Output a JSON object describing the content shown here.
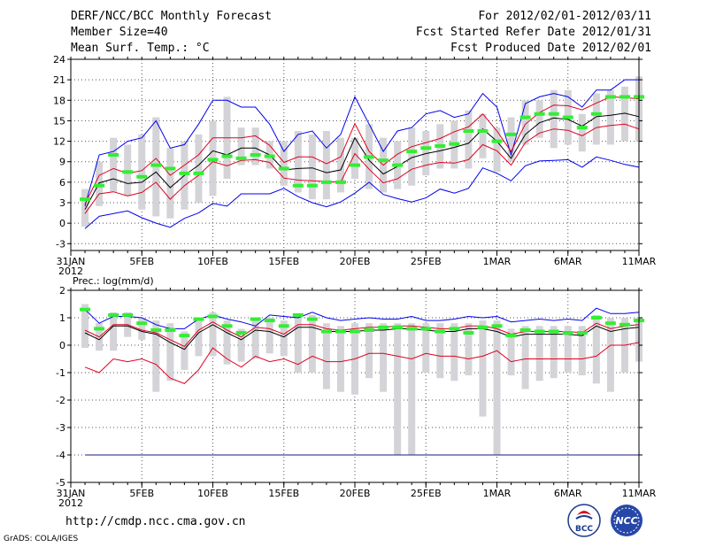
{
  "header": {
    "title": "DERF/NCC/BCC Monthly Forecast",
    "member_size": "Member Size=40",
    "variable": "Mean Surf. Temp.: °C",
    "period": "For 2012/02/01-2012/03/11",
    "started": "Fcst Started Refer Date 2012/01/31",
    "produced": "Fcst Produced Date 2012/02/01"
  },
  "footer": {
    "url": "http://cmdp.ncc.cma.gov.cn",
    "credit": "GrADS: COLA/IGES"
  },
  "logos": {
    "left": "BCC",
    "right": "NCC"
  },
  "x_ticks": [
    {
      "day": 0,
      "label": "31JAN"
    },
    {
      "day": 5,
      "label": "5FEB"
    },
    {
      "day": 10,
      "label": "10FEB"
    },
    {
      "day": 15,
      "label": "15FEB"
    },
    {
      "day": 20,
      "label": "20FEB"
    },
    {
      "day": 25,
      "label": "25FEB"
    },
    {
      "day": 30,
      "label": "1MAR"
    },
    {
      "day": 35,
      "label": "6MAR"
    },
    {
      "day": 40,
      "label": "11MAR"
    }
  ],
  "x_year": "2012",
  "colors": {
    "max": "#0000ee",
    "min": "#0000ee",
    "pct": "#e00020",
    "mean": "#000000",
    "green": "#33ee33",
    "bar": "#d4d4d8",
    "grid": "#555555"
  },
  "chart_data": [
    {
      "type": "line",
      "title": "Mean Surf. Temp.: °C",
      "xlabel": "",
      "ylabel": "",
      "ylim": [
        -4,
        24
      ],
      "yticks": [
        -3,
        0,
        3,
        6,
        9,
        12,
        15,
        18,
        21,
        24
      ],
      "days": [
        1,
        2,
        3,
        4,
        5,
        6,
        7,
        8,
        9,
        10,
        11,
        12,
        13,
        14,
        15,
        16,
        17,
        18,
        19,
        20,
        21,
        22,
        23,
        24,
        25,
        26,
        27,
        28,
        29,
        30,
        31,
        32,
        33,
        34,
        35,
        36,
        37,
        38,
        39,
        40
      ],
      "series": [
        {
          "name": "max",
          "values": [
            -0.8,
            1.0,
            1.4,
            1.8,
            0.8,
            0.0,
            -0.6,
            0.7,
            1.5,
            2.9,
            2.5,
            4.3,
            4.3,
            4.3,
            5.1,
            3.9,
            3.0,
            2.4,
            3.1,
            4.4,
            6.0,
            4.2,
            3.6,
            3.1,
            3.7,
            5.0,
            4.4,
            5.1,
            8.1,
            7.3,
            6.2,
            8.4,
            9.1,
            9.2,
            9.3,
            8.2,
            9.7,
            9.2,
            8.6,
            8.2
          ]
        },
        {
          "name": "min",
          "values": [
            2.5,
            10.0,
            10.5,
            12.0,
            12.5,
            15.0,
            11.0,
            11.5,
            14.5,
            18.0,
            18.0,
            17.0,
            17.0,
            14.5,
            10.5,
            13.0,
            13.5,
            11.0,
            13.0,
            18.5,
            14.5,
            10.5,
            13.5,
            14.0,
            16.0,
            16.5,
            15.5,
            16.0,
            19.0,
            17.0,
            10.0,
            17.5,
            18.5,
            19.0,
            18.5,
            17.0,
            19.5,
            19.5,
            21.0,
            21.0
          ]
        },
        {
          "name": "upper",
          "values": [
            2.8,
            7.0,
            8.0,
            7.3,
            7.7,
            9.5,
            7.0,
            8.5,
            10.0,
            12.5,
            12.5,
            12.5,
            12.8,
            11.4,
            8.9,
            9.7,
            9.7,
            8.7,
            9.7,
            14.6,
            10.5,
            8.5,
            10.1,
            11.2,
            11.8,
            12.4,
            13.4,
            14.1,
            16.0,
            13.5,
            10.5,
            14.5,
            16.2,
            17.3,
            17.2,
            16.6,
            17.6,
            18.5,
            18.4,
            18.2
          ]
        },
        {
          "name": "lower",
          "values": [
            1.4,
            4.3,
            4.6,
            4.0,
            4.5,
            6.0,
            3.5,
            5.5,
            7.0,
            9.0,
            8.4,
            9.2,
            9.3,
            8.9,
            6.6,
            6.3,
            6.2,
            6.1,
            6.0,
            10.2,
            7.9,
            5.9,
            6.5,
            7.9,
            8.5,
            8.9,
            8.8,
            9.3,
            11.5,
            10.6,
            8.5,
            11.8,
            13.2,
            13.8,
            13.6,
            12.8,
            14.0,
            14.3,
            14.5,
            13.8
          ]
        },
        {
          "name": "mean",
          "values": [
            2.0,
            5.9,
            6.5,
            5.8,
            6.0,
            7.5,
            5.2,
            7.0,
            8.5,
            10.6,
            10.0,
            11.0,
            11.0,
            10.0,
            7.8,
            8.0,
            8.1,
            7.4,
            7.8,
            12.5,
            9.2,
            7.2,
            8.3,
            9.6,
            10.2,
            10.6,
            11.1,
            11.7,
            13.8,
            12.0,
            9.5,
            13.0,
            14.7,
            15.4,
            15.2,
            14.2,
            15.6,
            15.8,
            16.1,
            15.6
          ]
        }
      ],
      "median": [
        3.5,
        5.5,
        10.0,
        7.5,
        6.8,
        8.5,
        8.0,
        7.3,
        7.3,
        9.3,
        9.8,
        9.5,
        10.0,
        9.8,
        8.0,
        5.5,
        5.5,
        6.0,
        6.0,
        8.5,
        9.7,
        9.2,
        8.5,
        10.5,
        11.0,
        11.3,
        11.6,
        13.5,
        13.5,
        12.0,
        13.0,
        15.5,
        16.0,
        16.0,
        15.5,
        14.0,
        16.0,
        18.5,
        18.5,
        18.5
      ],
      "box_low": [
        -0.5,
        2.5,
        4.5,
        4.0,
        2.0,
        1.0,
        0.7,
        2.0,
        3.0,
        4.0,
        6.5,
        8.5,
        8.5,
        8.0,
        5.5,
        4.5,
        3.5,
        3.5,
        4.5,
        6.5,
        5.0,
        4.5,
        5.0,
        5.5,
        7.0,
        8.0,
        8.0,
        8.0,
        9.5,
        7.5,
        9.0,
        11.5,
        12.5,
        11.0,
        11.5,
        10.5,
        11.5,
        11.5,
        12.0,
        12.0
      ],
      "box_high": [
        5.0,
        9.0,
        12.5,
        11.5,
        13.0,
        15.5,
        11.0,
        12.0,
        13.0,
        15.0,
        18.5,
        14.0,
        14.0,
        12.0,
        12.0,
        13.5,
        13.0,
        13.5,
        12.5,
        12.5,
        14.5,
        12.5,
        12.0,
        14.0,
        13.5,
        14.5,
        15.0,
        16.5,
        16.0,
        14.0,
        15.5,
        18.0,
        18.0,
        19.5,
        19.5,
        16.0,
        19.0,
        19.5,
        20.0,
        21.5
      ]
    },
    {
      "type": "line",
      "title": "Prec.: log(mm/d)",
      "xlabel": "",
      "ylabel": "",
      "ylim": [
        -5,
        2
      ],
      "yticks": [
        -5,
        -4,
        -3,
        -2,
        -1,
        0,
        1,
        2
      ],
      "days": [
        1,
        2,
        3,
        4,
        5,
        6,
        7,
        8,
        9,
        10,
        11,
        12,
        13,
        14,
        15,
        16,
        17,
        18,
        19,
        20,
        21,
        22,
        23,
        24,
        25,
        26,
        27,
        28,
        29,
        30,
        31,
        32,
        33,
        34,
        35,
        36,
        37,
        38,
        39,
        40
      ],
      "series": [
        {
          "name": "max",
          "values": [
            1.3,
            0.8,
            1.05,
            1.05,
            1.0,
            0.75,
            0.6,
            0.6,
            0.95,
            1.1,
            0.95,
            0.85,
            0.7,
            1.1,
            1.05,
            1.0,
            1.2,
            1.0,
            0.9,
            0.95,
            1.0,
            0.95,
            0.95,
            1.05,
            0.9,
            0.9,
            0.95,
            1.05,
            1.0,
            1.05,
            0.85,
            0.9,
            0.95,
            0.9,
            0.95,
            0.9,
            1.35,
            1.15,
            1.15,
            1.2
          ]
        },
        {
          "name": "p_low",
          "values": [
            -0.8,
            -1.0,
            -0.5,
            -0.6,
            -0.5,
            -0.7,
            -1.2,
            -1.4,
            -0.9,
            -0.1,
            -0.5,
            -0.8,
            -0.4,
            -0.6,
            -0.5,
            -0.7,
            -0.4,
            -0.6,
            -0.6,
            -0.5,
            -0.3,
            -0.3,
            -0.4,
            -0.5,
            -0.3,
            -0.4,
            -0.4,
            -0.5,
            -0.4,
            -0.2,
            -0.6,
            -0.5,
            -0.5,
            -0.5,
            -0.5,
            -0.5,
            -0.4,
            0.0,
            0.0,
            0.1
          ]
        },
        {
          "name": "upper",
          "values": [
            0.55,
            0.3,
            0.75,
            0.75,
            0.55,
            0.45,
            0.2,
            -0.05,
            0.55,
            0.85,
            0.55,
            0.3,
            0.65,
            0.6,
            0.4,
            0.75,
            0.75,
            0.6,
            0.55,
            0.6,
            0.65,
            0.65,
            0.7,
            0.7,
            0.65,
            0.6,
            0.6,
            0.7,
            0.7,
            0.6,
            0.4,
            0.5,
            0.5,
            0.5,
            0.5,
            0.45,
            0.8,
            0.6,
            0.7,
            0.75
          ]
        },
        {
          "name": "mean",
          "values": [
            0.45,
            0.2,
            0.7,
            0.7,
            0.5,
            0.4,
            0.1,
            -0.15,
            0.45,
            0.75,
            0.45,
            0.2,
            0.55,
            0.5,
            0.3,
            0.65,
            0.65,
            0.5,
            0.5,
            0.5,
            0.55,
            0.55,
            0.6,
            0.6,
            0.55,
            0.5,
            0.5,
            0.6,
            0.6,
            0.5,
            0.3,
            0.4,
            0.4,
            0.4,
            0.4,
            0.35,
            0.7,
            0.5,
            0.6,
            0.65
          ]
        }
      ],
      "floor": -4,
      "median": [
        1.3,
        0.6,
        1.1,
        1.1,
        0.8,
        0.55,
        0.55,
        0.35,
        0.95,
        1.05,
        0.7,
        0.45,
        0.95,
        0.9,
        0.7,
        1.1,
        0.95,
        0.5,
        0.5,
        0.5,
        0.55,
        0.65,
        0.65,
        0.6,
        0.6,
        0.5,
        0.6,
        0.45,
        0.65,
        0.7,
        0.35,
        0.55,
        0.5,
        0.5,
        0.45,
        0.45,
        1.0,
        0.8,
        0.75,
        0.9
      ],
      "box_low": [
        -0.1,
        -0.2,
        -0.2,
        0.3,
        0.2,
        -1.7,
        -1.3,
        -0.9,
        -0.4,
        -0.4,
        -0.7,
        -0.6,
        -0.5,
        -0.3,
        -0.4,
        -1.0,
        -1.0,
        -1.6,
        -1.7,
        -1.8,
        -1.2,
        -1.7,
        -4.0,
        -4.0,
        -1.0,
        -1.2,
        -1.3,
        -1.1,
        -2.6,
        -4.0,
        -1.1,
        -1.6,
        -1.3,
        -1.2,
        -1.0,
        -1.1,
        -1.4,
        -1.7,
        -1.0,
        -0.6
      ],
      "box_high": [
        1.5,
        0.8,
        1.2,
        1.2,
        1.0,
        0.9,
        0.8,
        0.5,
        1.0,
        1.2,
        0.9,
        0.6,
        1.0,
        1.0,
        0.9,
        1.1,
        1.1,
        0.8,
        0.7,
        0.8,
        0.8,
        0.8,
        0.8,
        0.8,
        0.8,
        0.8,
        0.8,
        0.8,
        0.9,
        0.9,
        0.6,
        0.7,
        0.7,
        0.7,
        0.7,
        0.7,
        1.1,
        1.0,
        1.0,
        1.0
      ]
    }
  ]
}
